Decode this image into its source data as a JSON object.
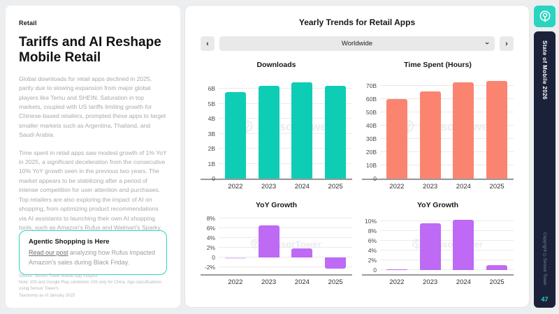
{
  "left_panel": {
    "eyebrow": "Retail",
    "title": "Tariffs and AI Reshape Mobile Retail",
    "paragraphs": [
      "Global downloads for retail apps declined in 2025, partly due to slowing expansion from major global players like Temu and SHEIN. Saturation in top markets, coupled with US tariffs limiting growth for Chinese-based retailers, prompted these apps to target smaller markets such as Argentina, Thailand, and Saudi Arabia.",
      "Time spent in retail apps saw modest growth of 1% YoY in 2025, a significant deceleration from the consecutive 10% YoY growth seen in the previous two years. The market appears to be stabilizing after a period of intense competition for user attention and purchases. Top retailers are also exploring the impact of AI on shopping, from optimizing product recommendations via AI assistants to launching their own AI shopping tools, such as Amazon's Rufus and Walmart's Sparky."
    ],
    "callout": {
      "title": "Agentic Shopping is Here",
      "link_text": "Read our post",
      "body_rest": " analyzing how Rufus impacted Amazon's sales during Black Friday."
    },
    "footnote": [
      "Source: Sensor Tower Mobile App Insights",
      "Note: iOS and Google Play combined. iOS only for China. App classifications using Sensor Tower's",
      "Taxonomy as of January 2025"
    ]
  },
  "right_panel": {
    "title": "Yearly Trends for Retail Apps",
    "selector": {
      "prev_icon": "‹",
      "next_icon": "›",
      "chevron_icon": "›",
      "value": "Worldwide"
    },
    "watermark_text": "SensorTower"
  },
  "sidebar": {
    "brand": "State of Mobile 2026",
    "copyright": "Copyright ©Sensor Tower",
    "page_number": "47",
    "accent_color": "#2bd4c0",
    "bg_color": "#1b2139"
  },
  "chart_data": [
    {
      "type": "bar",
      "title": "Downloads",
      "categories": [
        "2022",
        "2023",
        "2024",
        "2025"
      ],
      "values": [
        5.8,
        6.2,
        6.45,
        6.2
      ],
      "unit": "billions",
      "yticks": [
        0,
        1,
        2,
        3,
        4,
        5,
        6
      ],
      "ytick_labels": [
        "0",
        "1B",
        "2B",
        "3B",
        "4B",
        "5B",
        "6B"
      ],
      "ylim": [
        0,
        6.9
      ],
      "grid": true,
      "color": "#0ecdb5"
    },
    {
      "type": "bar",
      "title": "Time Spent (Hours)",
      "categories": [
        "2022",
        "2023",
        "2024",
        "2025"
      ],
      "values": [
        60,
        66,
        73,
        74
      ],
      "unit": "billions",
      "yticks": [
        0,
        10,
        20,
        30,
        40,
        50,
        60,
        70
      ],
      "ytick_labels": [
        "0",
        "10B",
        "20B",
        "30B",
        "40B",
        "50B",
        "60B",
        "70B"
      ],
      "ylim": [
        0,
        78
      ],
      "grid": true,
      "color": "#fb8470"
    },
    {
      "type": "bar",
      "title": "YoY Growth",
      "subject": "Downloads YoY Growth",
      "categories": [
        "2022",
        "2023",
        "2024",
        "2025"
      ],
      "values": [
        -0.2,
        6.6,
        1.9,
        -2.3
      ],
      "unit": "percent",
      "yticks": [
        8,
        6,
        4,
        2,
        0,
        -2
      ],
      "ytick_labels": [
        "8%",
        "6%",
        "4%",
        "2%",
        "0",
        "-2%"
      ],
      "ylim": [
        -3.4,
        8.9
      ],
      "grid": true,
      "color": "#be6af5",
      "colors": [
        "#ecd5fa",
        "#be6af5",
        "#be6af5",
        "#be6af5"
      ]
    },
    {
      "type": "bar",
      "title": "YoY Growth",
      "subject": "Time Spent YoY Growth",
      "categories": [
        "2022",
        "2023",
        "2024",
        "2025"
      ],
      "values": [
        0.15,
        9.5,
        10.3,
        1.0
      ],
      "unit": "percent",
      "yticks": [
        10,
        8,
        6,
        4,
        2,
        0
      ],
      "ytick_labels": [
        "10%",
        "8%",
        "6%",
        "4%",
        "2%",
        "0"
      ],
      "ylim": [
        -0.9,
        11.4
      ],
      "grid": true,
      "color": "#be6af5"
    }
  ]
}
